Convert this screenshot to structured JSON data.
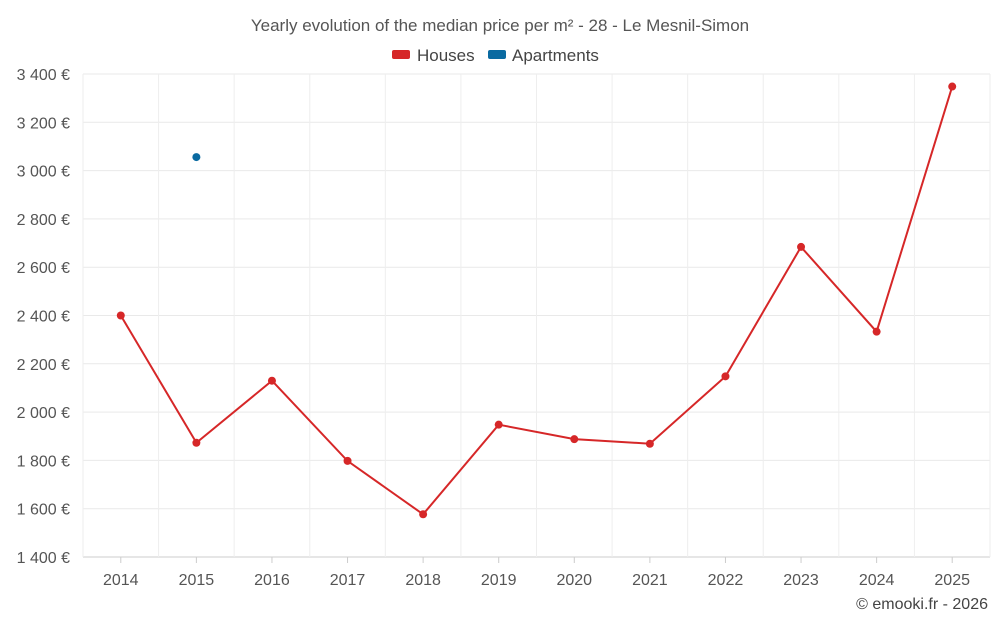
{
  "chart_data": {
    "type": "line",
    "title": "Yearly evolution of the median price per m² - 28 - Le Mesnil-Simon",
    "categories": [
      "2014",
      "2015",
      "2016",
      "2017",
      "2018",
      "2019",
      "2020",
      "2021",
      "2022",
      "2023",
      "2024",
      "2025"
    ],
    "series": [
      {
        "name": "Houses",
        "color": "#d62728",
        "values": [
          2400,
          1873,
          2130,
          1798,
          1577,
          1948,
          1888,
          1869,
          2148,
          2684,
          2333,
          3348
        ]
      },
      {
        "name": "Apartments",
        "color": "#0a6aa1",
        "values": [
          null,
          3056,
          null,
          null,
          null,
          null,
          null,
          null,
          null,
          null,
          null,
          null
        ]
      }
    ],
    "ylim": [
      1400,
      3400
    ],
    "yticks": [
      1400,
      1600,
      1800,
      2000,
      2200,
      2400,
      2600,
      2800,
      3000,
      3200,
      3400
    ],
    "ytick_labels": [
      "1 400 €",
      "1 600 €",
      "1 800 €",
      "2 000 €",
      "2 200 €",
      "2 400 €",
      "2 600 €",
      "2 800 €",
      "3 000 €",
      "3 200 €",
      "3 400 €"
    ],
    "xlabel": "",
    "ylabel": "",
    "grid": true,
    "legend_position": "top-center",
    "credit": "© emooki.fr - 2026"
  }
}
